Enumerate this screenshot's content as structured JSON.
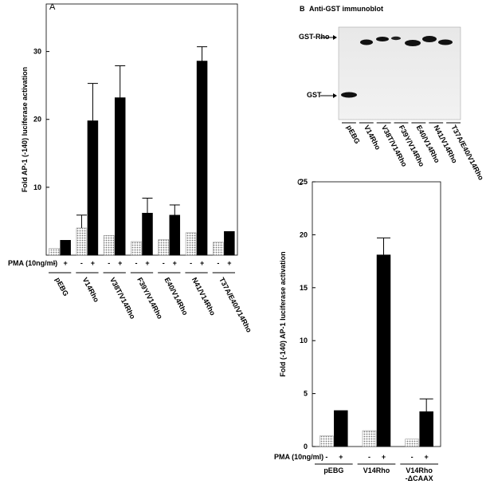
{
  "chart_data": [
    {
      "type": "bar",
      "panel": "A",
      "y_label": "Fold AP-1 (-140) luciferase activation",
      "treatment_label": "PMA (10ng/ml)",
      "categories": [
        "pEBG",
        "V14Rho",
        "V38T/V14Rho",
        "F39Y/V14Rho",
        "E40/V14Rho",
        "N41/V14Rho",
        "T37A/E40/V14Rho"
      ],
      "series": [
        {
          "name": "-",
          "color": "#d4d4d4",
          "values": [
            1,
            4,
            2.9,
            2,
            2.3,
            3.3,
            1.9
          ],
          "errors": [
            null,
            1.9,
            null,
            null,
            null,
            null,
            null
          ]
        },
        {
          "name": "+",
          "color": "#000000",
          "values": [
            2.2,
            19.8,
            23.2,
            6.2,
            5.9,
            28.6,
            3.5
          ],
          "errors": [
            null,
            5.5,
            4.7,
            2.2,
            1.5,
            2.1,
            null
          ]
        }
      ],
      "ylim": [
        0,
        37
      ],
      "yticks": [
        10,
        20,
        30
      ]
    },
    {
      "type": "bar",
      "panel": "C",
      "y_label": "Fold (-140) AP-1 luciferase activation",
      "treatment_label": "PMA (10ng/ml)",
      "categories": [
        "pEBG",
        "V14Rho",
        "V14Rho -ΔCAAX"
      ],
      "series": [
        {
          "name": "-",
          "color": "#d4d4d4",
          "values": [
            1,
            1.5,
            0.7
          ],
          "errors": [
            null,
            null,
            null
          ]
        },
        {
          "name": "+",
          "color": "#000000",
          "values": [
            3.4,
            18.1,
            3.3
          ],
          "errors": [
            null,
            1.6,
            1.2
          ]
        }
      ],
      "ylim": [
        0,
        25
      ],
      "yticks": [
        0,
        5,
        10,
        15,
        20,
        25
      ]
    }
  ],
  "blot": {
    "panel": "B",
    "title": "Anti-GST immunoblot",
    "band_labels": [
      "GST-Rho",
      "GST"
    ],
    "lanes": [
      "pEBG",
      "V14Rho",
      "V38T/V14Rho",
      "F39Y/V14Rho",
      "E40/V14Rho",
      "N41/V14Rho",
      "T37A/E40/V14Rho"
    ]
  }
}
